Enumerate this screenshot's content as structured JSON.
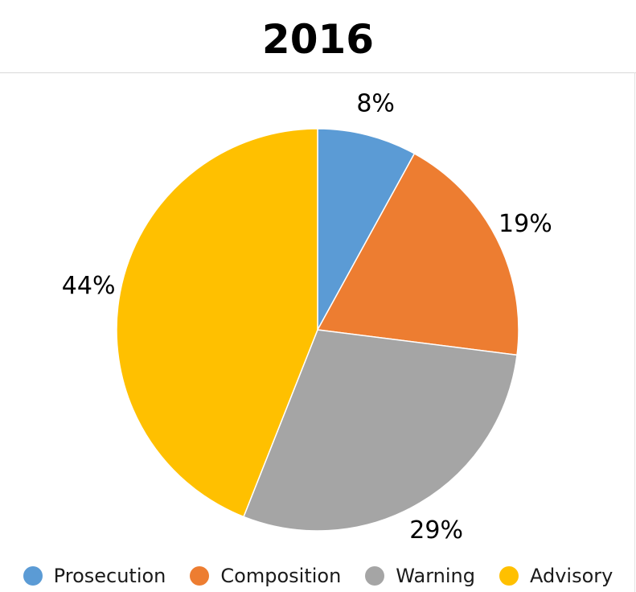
{
  "chart_data": {
    "type": "pie",
    "title": "2016",
    "categories": [
      "Prosecution",
      "Composition",
      "Warning",
      "Advisory"
    ],
    "values": [
      8,
      19,
      29,
      44
    ],
    "data_labels": [
      "8%",
      "19%",
      "29%",
      "44%"
    ],
    "colors": [
      "#5b9bd5",
      "#ed7d31",
      "#a5a5a5",
      "#ffc000"
    ],
    "legend_position": "bottom",
    "start_angle": "12 o'clock, clockwise"
  }
}
